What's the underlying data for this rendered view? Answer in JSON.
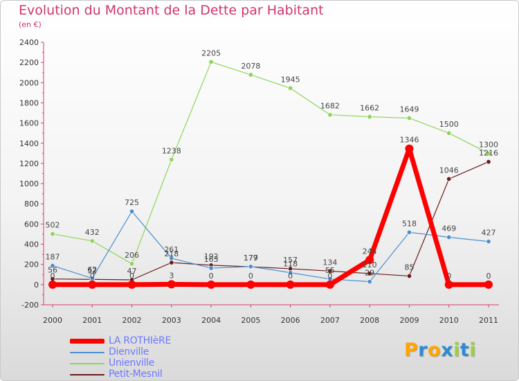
{
  "chart_data": {
    "type": "line",
    "title": "Evolution du Montant de la Dette par Habitant",
    "subtitle": "(en €)",
    "xlabel": "",
    "ylabel": "",
    "categories": [
      "2000",
      "2001",
      "2002",
      "2003",
      "2004",
      "2005",
      "2006",
      "2007",
      "2008",
      "2009",
      "2010",
      "2011"
    ],
    "ylim": [
      -200,
      2400
    ],
    "ytick_step": 200,
    "grid": false,
    "legend_position": "bottom-left",
    "series": [
      {
        "name": "LA ROTHIèRE",
        "color": "#ff0000",
        "values": [
          0,
          0,
          0,
          3,
          0,
          0,
          0,
          0,
          244,
          1346,
          0,
          0
        ],
        "labels": [
          "0",
          "0",
          "0",
          "3",
          "0",
          "0",
          "0",
          "0",
          "244",
          "1346",
          "0",
          "0"
        ]
      },
      {
        "name": "Dienville",
        "color": "#4a8fd0",
        "values": [
          187,
          62,
          725,
          261,
          163,
          179,
          118,
          55,
          29,
          518,
          469,
          427
        ],
        "labels": [
          "187",
          "62",
          "725",
          "261",
          "163",
          "179",
          "118",
          "55",
          "29",
          "518",
          "469",
          "427"
        ]
      },
      {
        "name": "Unienville",
        "color": "#8ed45a",
        "values": [
          502,
          432,
          206,
          1238,
          2205,
          2078,
          1945,
          1682,
          1662,
          1649,
          1500,
          1300
        ],
        "labels": [
          "502",
          "432",
          "206",
          "1238",
          "2205",
          "2078",
          "1945",
          "1682",
          "1662",
          "1649",
          "1500",
          "1300"
        ]
      },
      {
        "name": "Petit-Mesnil",
        "color": "#6b1b1b",
        "values": [
          56,
          52,
          47,
          218,
          192,
          177,
          157,
          134,
          110,
          85,
          1046,
          1216
        ],
        "labels": [
          "56",
          "52",
          "47",
          "218",
          "192",
          "177",
          "157",
          "134",
          "110",
          "85",
          "1046",
          "1216"
        ]
      }
    ]
  },
  "logo": {
    "letters": [
      "P",
      "r",
      "o",
      "x",
      "i",
      "t",
      "i"
    ],
    "colors": [
      "#ffa500",
      "#2e8bd0",
      "#ffa500",
      "#2e8bd0",
      "#9ad23a",
      "#2e8bd0",
      "#9ad23a"
    ]
  }
}
